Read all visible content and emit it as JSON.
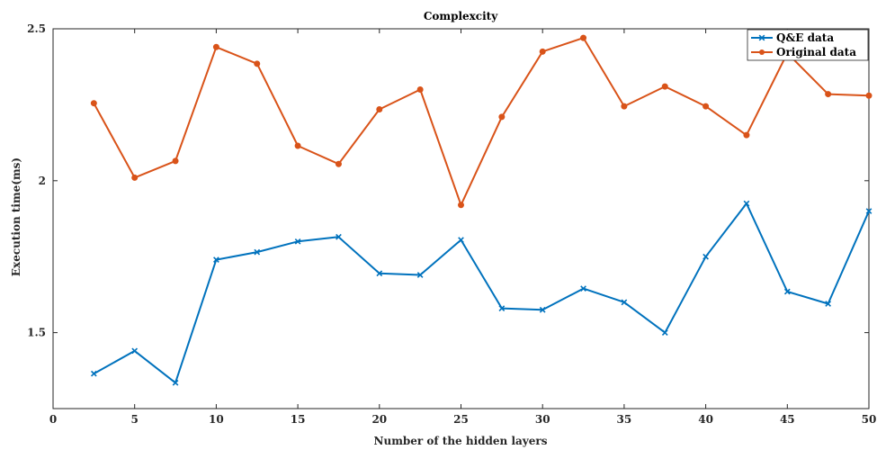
{
  "chart_data": {
    "type": "line",
    "title": "Complexcity",
    "xlabel": "Number of the hidden layers",
    "ylabel": "Execution time(ms)",
    "xlim": [
      0,
      50
    ],
    "ylim": [
      1.25,
      2.5
    ],
    "xticks": [
      0,
      5,
      10,
      15,
      20,
      25,
      30,
      35,
      40,
      45,
      50
    ],
    "yticks": [
      1.5,
      2,
      2.5
    ],
    "ytick_labels": [
      "1.5",
      "2",
      "2.5"
    ],
    "grid": false,
    "legend_position": "top-right",
    "x": [
      2.5,
      5,
      7.5,
      10,
      12.5,
      15,
      17.5,
      20,
      22.5,
      25,
      27.5,
      30,
      32.5,
      35,
      37.5,
      40,
      42.5,
      45,
      47.5,
      50
    ],
    "series": [
      {
        "name": "Q&E data",
        "color": "#0072BD",
        "marker": "x",
        "values": [
          1.365,
          1.44,
          1.335,
          1.74,
          1.765,
          1.8,
          1.815,
          1.695,
          1.69,
          1.805,
          1.58,
          1.575,
          1.645,
          1.6,
          1.5,
          1.75,
          1.925,
          1.635,
          1.595,
          1.9
        ]
      },
      {
        "name": "Original data",
        "color": "#D95319",
        "marker": "o",
        "values": [
          2.255,
          2.01,
          2.065,
          2.44,
          2.385,
          2.115,
          2.055,
          2.235,
          2.3,
          1.92,
          2.21,
          2.425,
          2.47,
          2.245,
          2.31,
          2.245,
          2.15,
          2.42,
          2.285,
          2.28
        ]
      }
    ]
  }
}
